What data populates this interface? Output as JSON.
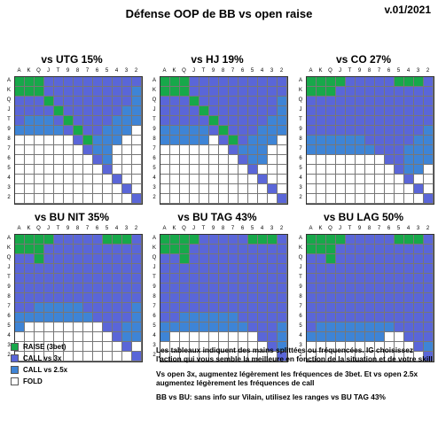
{
  "header": {
    "title": "Défense OOP de BB vs open raise",
    "version": "v.01/2021"
  },
  "ranks": [
    "A",
    "K",
    "Q",
    "J",
    "T",
    "9",
    "8",
    "7",
    "6",
    "5",
    "4",
    "3",
    "2"
  ],
  "colors": {
    "raise": "#17a84a",
    "call3": "#5a66d8",
    "call25": "#3e84d6",
    "fold": "#ffffff"
  },
  "charts": [
    {
      "title": "vs UTG 15%"
    },
    {
      "title": "vs HJ 19%"
    },
    {
      "title": "vs CO 27%"
    },
    {
      "title": "vs BU NIT 35%"
    },
    {
      "title": "vs BU TAG 43%"
    },
    {
      "title": "vs BU LAG 50%"
    }
  ],
  "legend": [
    {
      "key": "raise",
      "label": "RAISE (3bet)"
    },
    {
      "key": "call3",
      "label": "CALL vs 3x"
    },
    {
      "key": "call25",
      "label": "CALL vs 2.5x"
    },
    {
      "key": "fold",
      "label": "FOLD"
    }
  ],
  "notes": [
    "Les tableaux indiquent des mains splittées ou fréquencées. IG choisissez l'action qui vous semble la meilleure en fonction de la situation et de votre skill",
    "Vs open 3x, augmentez légèrement les fréquences de 3bet. Et vs open 2.5x augmentez légèrement les fréquences de call",
    "BB vs BU: sans info sur Vilain, utilisez les ranges vs BU TAG 43%"
  ]
}
